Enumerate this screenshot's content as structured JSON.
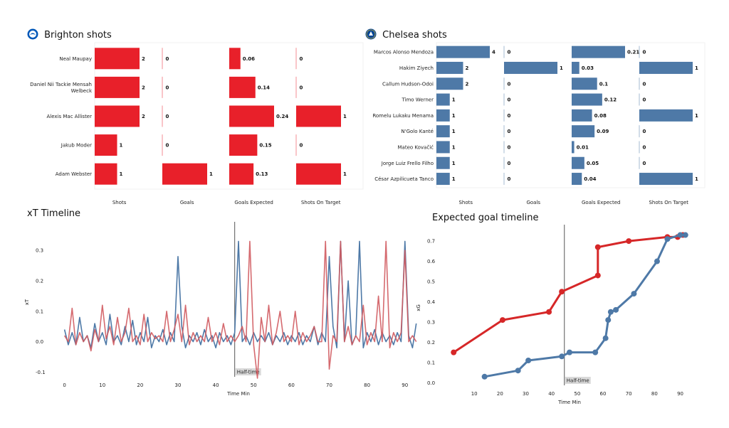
{
  "colors": {
    "brighton": "#e8202a",
    "chelsea": "#4e79a7",
    "brighton_line": "#d05a5f",
    "chelsea_line": "#4e79a7",
    "xg_brighton": "#d62728",
    "xg_chelsea": "#4e79a7"
  },
  "brighton_panel": {
    "title": "Brighton shots",
    "icon": "brighton-crest-icon",
    "columns": [
      "Shots",
      "Goals",
      "Goals Expected",
      "Shots On Target"
    ],
    "players": [
      {
        "name": "Neal Maupay",
        "values": [
          2,
          0,
          0.06,
          0
        ]
      },
      {
        "name": "Daniel Nii Tackie Mensah Welbeck",
        "values": [
          2,
          0,
          0.14,
          0
        ]
      },
      {
        "name": "Alexis Mac Allister",
        "values": [
          2,
          0,
          0.24,
          1
        ]
      },
      {
        "name": "Jakub Moder",
        "values": [
          1,
          0,
          0.15,
          0
        ]
      },
      {
        "name": "Adam Webster",
        "values": [
          1,
          1,
          0.13,
          1
        ]
      }
    ]
  },
  "chelsea_panel": {
    "title": "Chelsea shots",
    "icon": "chelsea-crest-icon",
    "columns": [
      "Shots",
      "Goals",
      "Goals Expected",
      "Shots On Target"
    ],
    "players": [
      {
        "name": "Marcos  Alonso Mendoza",
        "values": [
          4,
          0,
          0.21,
          0
        ]
      },
      {
        "name": "Hakim Ziyech",
        "values": [
          2,
          1,
          0.03,
          1
        ]
      },
      {
        "name": "Callum Hudson-Odoi",
        "values": [
          2,
          0,
          0.1,
          0
        ]
      },
      {
        "name": "Timo Werner",
        "values": [
          1,
          0,
          0.12,
          0
        ]
      },
      {
        "name": "Romelu Lukaku Menama",
        "values": [
          1,
          0,
          0.08,
          1
        ]
      },
      {
        "name": "N'Golo Kanté",
        "values": [
          1,
          0,
          0.09,
          0
        ]
      },
      {
        "name": "Mateo Kovačić",
        "values": [
          1,
          0,
          0.01,
          0
        ]
      },
      {
        "name": "Jorge Luiz Frello Filho",
        "values": [
          1,
          0,
          0.05,
          0
        ]
      },
      {
        "name": "César Azpilicueta Tanco",
        "values": [
          1,
          0,
          0.04,
          1
        ]
      }
    ]
  },
  "chart_data": [
    {
      "type": "line",
      "title": "xT Timeline",
      "xlabel": "Time Min",
      "ylabel": "xT",
      "xlim": [
        -2,
        94
      ],
      "ylim": [
        -0.12,
        0.38
      ],
      "xticks": [
        0,
        10,
        20,
        30,
        40,
        50,
        60,
        70,
        80,
        90
      ],
      "yticks": [
        -0.1,
        0.0,
        0.1,
        0.2,
        0.3
      ],
      "annotation": {
        "x": 45,
        "label": "Half-time"
      },
      "series": [
        {
          "team": "chelsea",
          "x": [
            0,
            1,
            2,
            3,
            4,
            5,
            6,
            7,
            8,
            9,
            10,
            11,
            12,
            13,
            14,
            15,
            16,
            17,
            18,
            19,
            20,
            21,
            22,
            23,
            24,
            25,
            26,
            27,
            28,
            29,
            30,
            31,
            32,
            33,
            34,
            35,
            36,
            37,
            38,
            39,
            40,
            41,
            42,
            43,
            44,
            45,
            46,
            47,
            48,
            49,
            50,
            51,
            52,
            53,
            54,
            55,
            56,
            57,
            58,
            59,
            60,
            61,
            62,
            63,
            64,
            65,
            66,
            67,
            68,
            69,
            70,
            71,
            72,
            73,
            74,
            75,
            76,
            77,
            78,
            79,
            80,
            81,
            82,
            83,
            84,
            85,
            86,
            87,
            88,
            89,
            90,
            91,
            92,
            93
          ],
          "values": [
            0.04,
            -0.01,
            0.03,
            -0.01,
            0.08,
            0.0,
            0.02,
            -0.02,
            0.06,
            0.0,
            0.03,
            -0.01,
            0.09,
            0.0,
            0.02,
            -0.01,
            0.05,
            0.0,
            0.07,
            -0.01,
            0.03,
            0.0,
            0.08,
            -0.02,
            0.02,
            0.0,
            0.04,
            -0.01,
            0.03,
            0.0,
            0.28,
            0.05,
            -0.02,
            0.02,
            0.0,
            0.03,
            -0.01,
            0.04,
            0.0,
            0.02,
            -0.02,
            0.03,
            0.0,
            0.02,
            -0.01,
            0.03,
            0.33,
            0.0,
            0.02,
            -0.01,
            0.03,
            0.0,
            0.02,
            0.0,
            0.03,
            -0.01,
            0.02,
            0.0,
            0.03,
            -0.01,
            0.02,
            0.0,
            0.03,
            -0.01,
            0.02,
            0.0,
            0.05,
            -0.01,
            0.03,
            0.0,
            0.28,
            0.05,
            -0.02,
            0.33,
            0.0,
            0.2,
            -0.01,
            0.02,
            0.33,
            -0.02,
            0.03,
            0.0,
            0.04,
            -0.01,
            0.03,
            0.0,
            0.02,
            -0.01,
            0.03,
            0.0,
            0.33,
            0.02,
            -0.02,
            0.06
          ]
        },
        {
          "team": "brighton",
          "x": [
            0,
            1,
            2,
            3,
            4,
            5,
            6,
            7,
            8,
            9,
            10,
            11,
            12,
            13,
            14,
            15,
            16,
            17,
            18,
            19,
            20,
            21,
            22,
            23,
            24,
            25,
            26,
            27,
            28,
            29,
            30,
            31,
            32,
            33,
            34,
            35,
            36,
            37,
            38,
            39,
            40,
            41,
            42,
            43,
            44,
            45,
            46,
            47,
            48,
            49,
            50,
            51,
            52,
            53,
            54,
            55,
            56,
            57,
            58,
            59,
            60,
            61,
            62,
            63,
            64,
            65,
            66,
            67,
            68,
            69,
            70,
            71,
            72,
            73,
            74,
            75,
            76,
            77,
            78,
            79,
            80,
            81,
            82,
            83,
            84,
            85,
            86,
            87,
            88,
            89,
            90,
            91,
            92,
            93
          ],
          "values": [
            0.02,
            0.0,
            0.11,
            -0.01,
            0.03,
            0.0,
            0.02,
            -0.03,
            0.04,
            0.0,
            0.12,
            0.01,
            0.05,
            -0.01,
            0.08,
            0.0,
            0.03,
            0.11,
            0.0,
            0.02,
            -0.01,
            0.09,
            0.0,
            0.03,
            0.01,
            0.02,
            0.0,
            0.1,
            0.0,
            0.04,
            0.09,
            0.0,
            0.12,
            -0.01,
            0.03,
            0.0,
            0.02,
            0.0,
            0.08,
            0.0,
            0.03,
            -0.01,
            0.06,
            0.0,
            0.02,
            0.0,
            0.02,
            0.05,
            0.0,
            0.33,
            -0.01,
            -0.12,
            0.08,
            0.0,
            0.12,
            -0.01,
            0.03,
            0.1,
            0.0,
            0.02,
            0.0,
            0.1,
            -0.01,
            0.03,
            0.0,
            0.02,
            0.05,
            0.0,
            0.0,
            0.33,
            -0.09,
            0.02,
            0.0,
            0.33,
            0.0,
            0.05,
            -0.01,
            0.02,
            0.0,
            0.12,
            -0.01,
            0.03,
            0.0,
            0.15,
            0.0,
            0.33,
            -0.02,
            0.03,
            0.0,
            0.03,
            0.3,
            0.0,
            0.02,
            0.0
          ]
        }
      ]
    },
    {
      "type": "line",
      "title": "Expected goal timeline",
      "xlabel": "Time Min",
      "ylabel": "xG",
      "xlim": [
        0,
        94
      ],
      "ylim": [
        -0.02,
        0.76
      ],
      "xticks": [
        10,
        20,
        30,
        40,
        50,
        60,
        70,
        80,
        90
      ],
      "yticks": [
        0.0,
        0.1,
        0.2,
        0.3,
        0.4,
        0.5,
        0.6,
        0.7
      ],
      "annotation": {
        "x": 45,
        "label": "Half-time"
      },
      "series": [
        {
          "team": "brighton",
          "x": [
            2,
            21,
            39,
            44,
            58,
            58,
            70,
            85,
            89,
            91
          ],
          "values": [
            0.15,
            0.31,
            0.35,
            0.45,
            0.53,
            0.67,
            0.7,
            0.72,
            0.72,
            0.73
          ]
        },
        {
          "team": "chelsea",
          "x": [
            14,
            27,
            31,
            44,
            47,
            57,
            61,
            62,
            63,
            65,
            72,
            81,
            85,
            90,
            92
          ],
          "values": [
            0.03,
            0.06,
            0.11,
            0.13,
            0.15,
            0.15,
            0.22,
            0.31,
            0.35,
            0.36,
            0.44,
            0.6,
            0.71,
            0.73,
            0.73
          ]
        }
      ]
    }
  ]
}
